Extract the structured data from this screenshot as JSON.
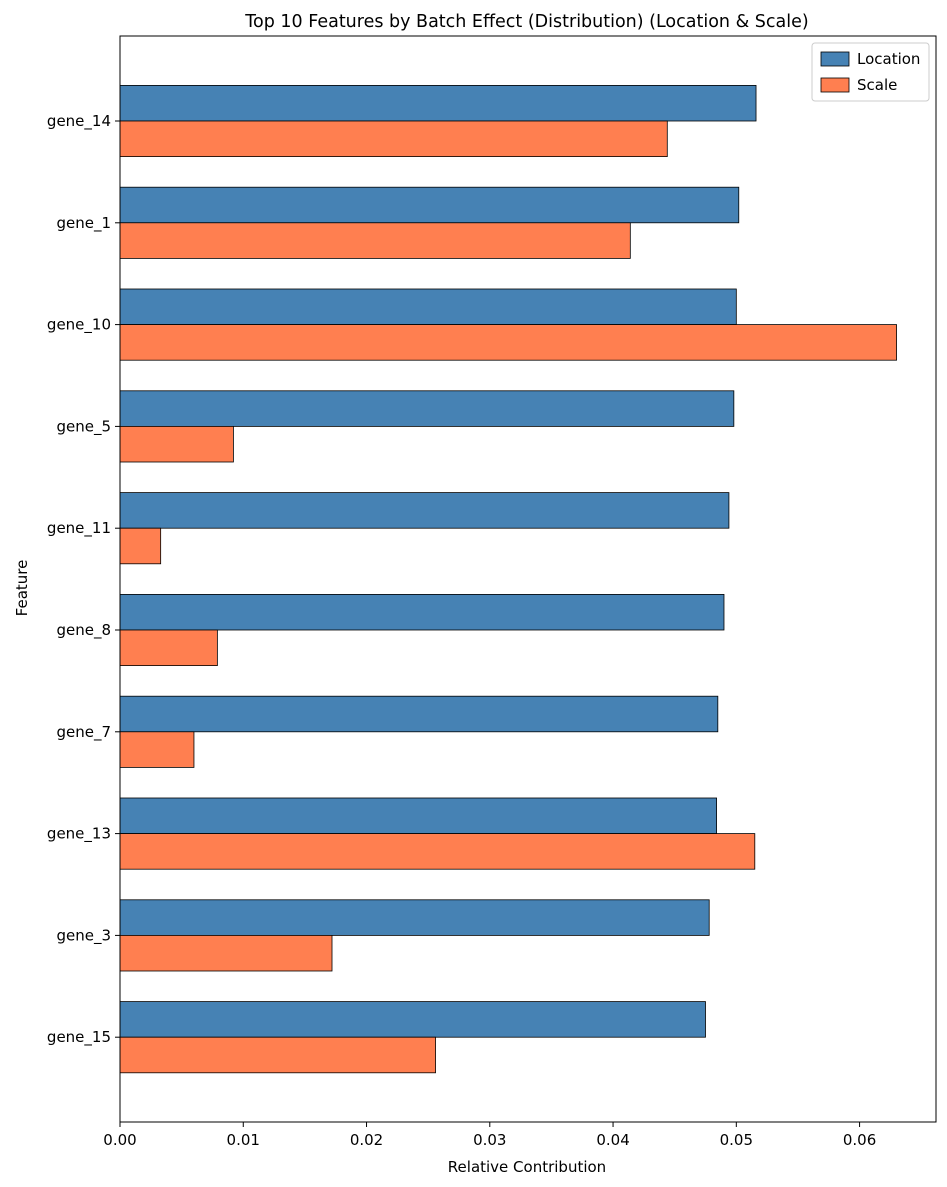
{
  "chart_data": {
    "type": "bar",
    "orientation": "horizontal",
    "title": "Top 10 Features by Batch Effect (Distribution) (Location & Scale)",
    "xlabel": "Relative Contribution",
    "ylabel": "Feature",
    "categories": [
      "gene_14",
      "gene_1",
      "gene_10",
      "gene_5",
      "gene_11",
      "gene_8",
      "gene_7",
      "gene_13",
      "gene_3",
      "gene_15"
    ],
    "series": [
      {
        "name": "Location",
        "color": "#4682b4",
        "values": [
          0.0516,
          0.0502,
          0.05,
          0.0498,
          0.0494,
          0.049,
          0.0485,
          0.0484,
          0.0478,
          0.0475
        ]
      },
      {
        "name": "Scale",
        "color": "#ff7f50",
        "values": [
          0.0444,
          0.0414,
          0.063,
          0.0092,
          0.0033,
          0.0079,
          0.006,
          0.0515,
          0.0172,
          0.0256
        ]
      }
    ],
    "xlim": [
      0,
      0.0662
    ],
    "xticks": [
      "0.00",
      "0.01",
      "0.02",
      "0.03",
      "0.04",
      "0.05",
      "0.06"
    ],
    "xtick_values": [
      0,
      0.01,
      0.02,
      0.03,
      0.04,
      0.05,
      0.06
    ],
    "legend_position": "top-right",
    "grid": false
  }
}
